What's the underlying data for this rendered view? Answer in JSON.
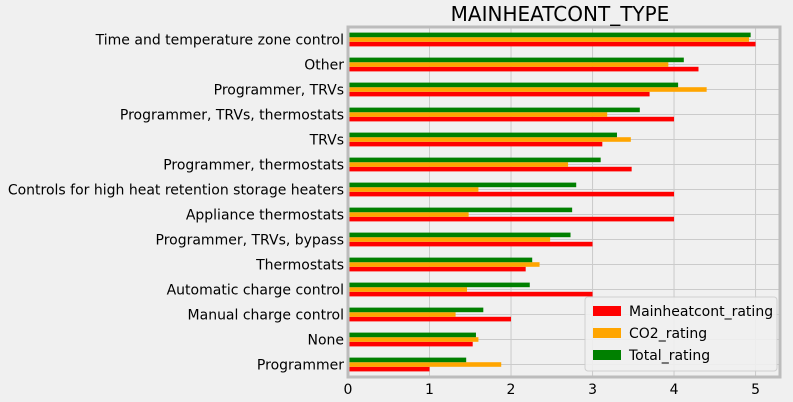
{
  "chart_data": {
    "type": "bar",
    "orientation": "horizontal",
    "title": "MAINHEATCONT_TYPE",
    "xlabel": "",
    "ylabel": "",
    "xlim": [
      0,
      5.3
    ],
    "xticks": [
      0,
      1,
      2,
      3,
      4,
      5
    ],
    "grid": true,
    "legend_position": "lower-right",
    "categories": [
      "Time and temperature zone control",
      "Other",
      "Programmer, TRVs",
      "Programmer, TRVs, thermostats",
      "TRVs",
      "Programmer, thermostats",
      "Controls for high heat retention storage heaters",
      "Appliance thermostats",
      "Programmer, TRVs, bypass",
      "Thermostats",
      "Automatic charge control",
      "Manual charge control",
      "None",
      "Programmer"
    ],
    "series": [
      {
        "name": "Mainheatcont_rating",
        "color": "#ff0000",
        "values": [
          5.0,
          4.3,
          3.7,
          4.0,
          3.12,
          3.48,
          4.0,
          4.0,
          3.0,
          2.18,
          3.0,
          2.0,
          1.53,
          1.0
        ]
      },
      {
        "name": "CO2_rating",
        "color": "#ffa500",
        "values": [
          4.92,
          3.93,
          4.4,
          3.18,
          3.47,
          2.7,
          1.6,
          1.48,
          2.48,
          2.35,
          1.46,
          1.32,
          1.6,
          1.88
        ]
      },
      {
        "name": "Total_rating",
        "color": "#008000",
        "values": [
          4.94,
          4.12,
          4.05,
          3.58,
          3.3,
          3.1,
          2.8,
          2.75,
          2.73,
          2.26,
          2.23,
          1.66,
          1.57,
          1.45
        ]
      }
    ]
  }
}
